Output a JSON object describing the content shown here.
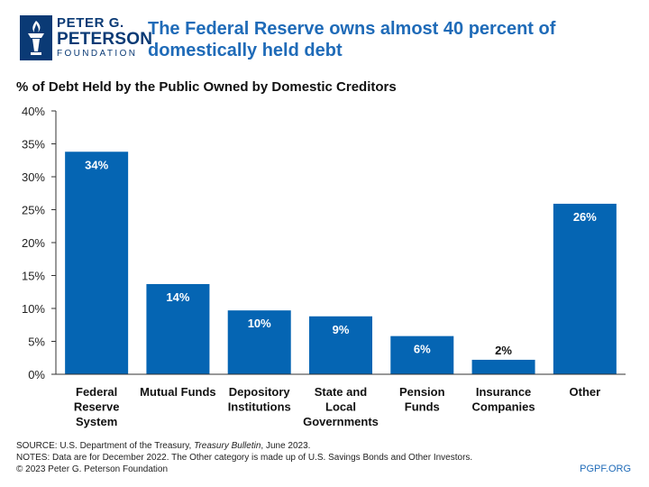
{
  "logo": {
    "line1": "PETER G.",
    "line2": "PETERSON",
    "line3": "FOUNDATION",
    "icon": "torch-icon",
    "color": "#0a3a75"
  },
  "headline": {
    "line1": "The Federal Reserve owns almost 40 percent of",
    "line2": "domestically held debt"
  },
  "chart_data": {
    "type": "bar",
    "title": "% of Debt Held by the Public Owned by Domestic Creditors",
    "categories": [
      [
        "Federal",
        "Reserve",
        "System"
      ],
      [
        "Mutual Funds"
      ],
      [
        "Depository",
        "Institutions"
      ],
      [
        "State and",
        "Local",
        "Governments"
      ],
      [
        "Pension",
        "Funds"
      ],
      [
        "Insurance",
        "Companies"
      ],
      [
        "Other"
      ]
    ],
    "values": [
      33.8,
      13.7,
      9.7,
      8.8,
      5.8,
      2.2,
      25.9
    ],
    "value_labels": [
      "34%",
      "14%",
      "10%",
      "9%",
      "6%",
      "2%",
      "26%"
    ],
    "yticks": [
      "0%",
      "5%",
      "10%",
      "15%",
      "20%",
      "25%",
      "30%",
      "35%",
      "40%"
    ],
    "ylim": [
      0,
      40
    ],
    "bar_color": "#0565b3",
    "grid": false,
    "legend": "none"
  },
  "footer": {
    "source_prefix": "SOURCE: U.S. Department of the Treasury, ",
    "source_title": "Treasury Bulletin",
    "source_suffix": ", June 2023.",
    "notes": "NOTES: Data are for December 2022. The Other category is made up of U.S. Savings Bonds and Other Investors.",
    "copyright": "© 2023 Peter G. Peterson Foundation",
    "url": "PGPF.ORG"
  }
}
